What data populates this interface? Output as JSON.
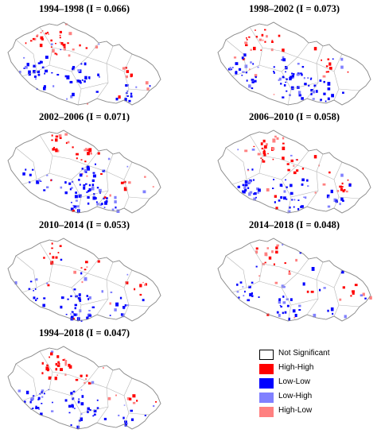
{
  "panels": [
    {
      "id": "p1",
      "title": "1994–1998 (I = 0.066)"
    },
    {
      "id": "p2",
      "title": "1998–2002 (I = 0.073)"
    },
    {
      "id": "p3",
      "title": "2002–2006 (I = 0.071)"
    },
    {
      "id": "p4",
      "title": "2006–2010 (I = 0.058)"
    },
    {
      "id": "p5",
      "title": "2010–2014 (I = 0.053)"
    },
    {
      "id": "p6",
      "title": "2014–2018 (I = 0.048)"
    },
    {
      "id": "p7",
      "title": "1994–2018 (I = 0.047)"
    }
  ],
  "legend": [
    {
      "label": "Not Significant",
      "color": "#ffffff"
    },
    {
      "label": "High-High",
      "color": "#ff0000"
    },
    {
      "label": "Low-Low",
      "color": "#0000ff"
    },
    {
      "label": "Low-High",
      "color": "#8080ff"
    },
    {
      "label": "High-Low",
      "color": "#ff8080"
    }
  ]
}
